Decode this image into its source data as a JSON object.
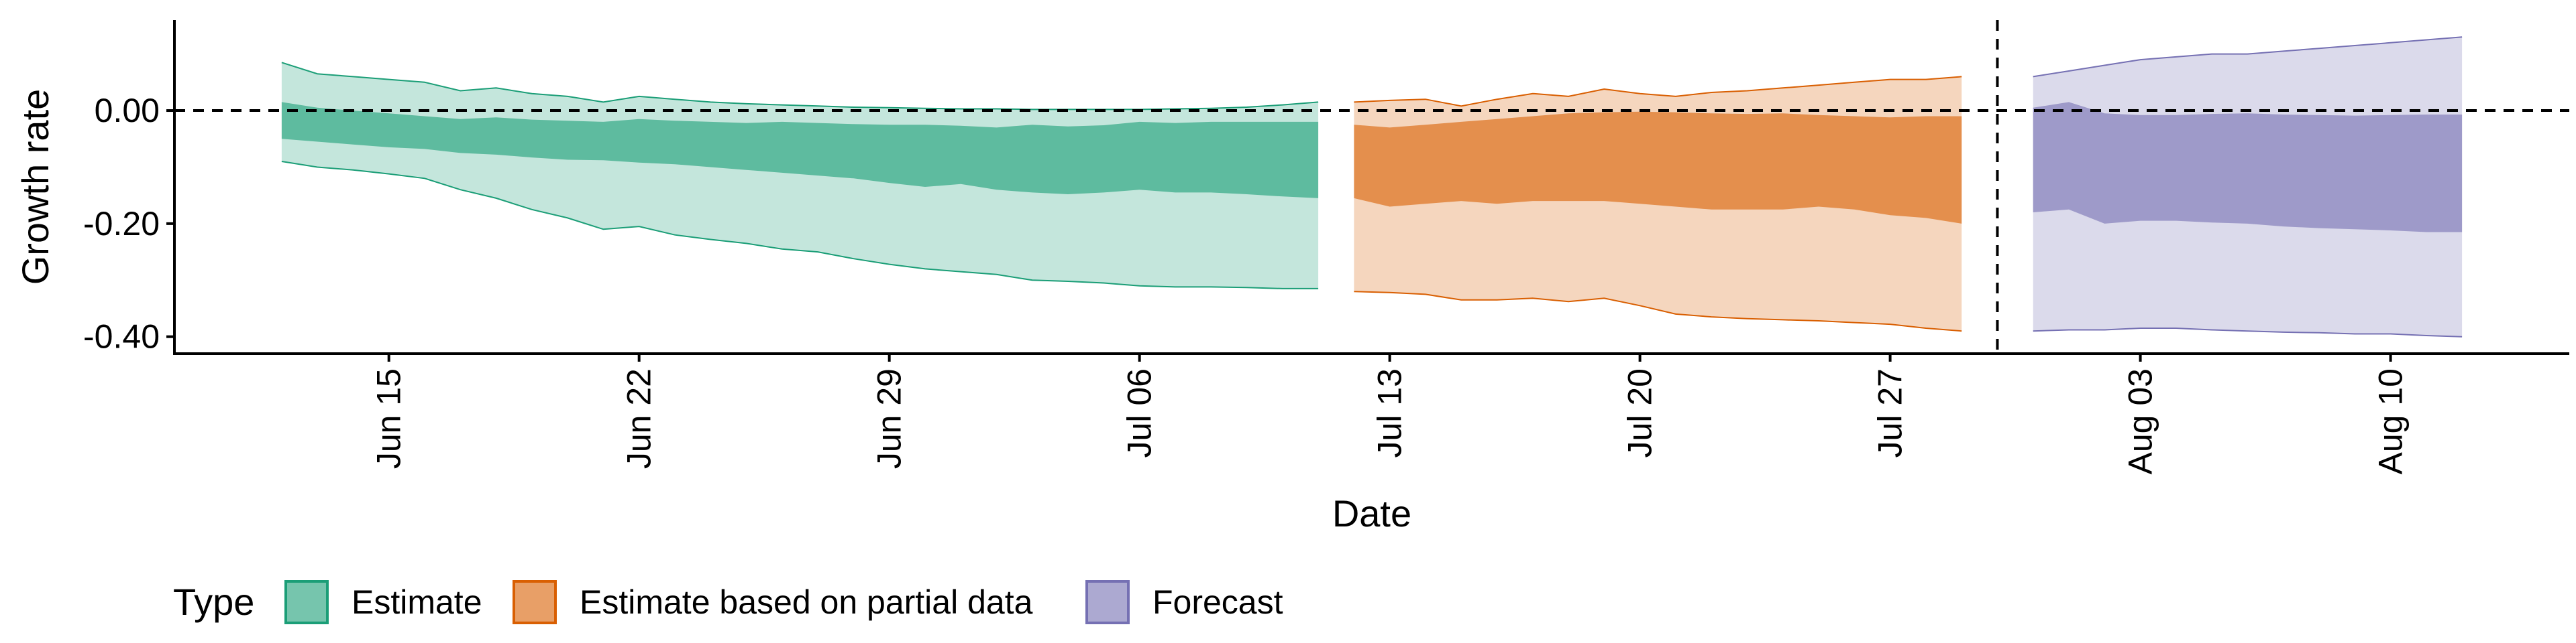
{
  "chart_data": {
    "type": "area",
    "title": "",
    "xlabel": "Date",
    "ylabel": "Growth rate",
    "x_type": "date",
    "xlim": [
      "2020-06-09",
      "2020-08-15"
    ],
    "ylim": [
      -0.43,
      0.16
    ],
    "y_ticks": [
      0.0,
      -0.2,
      -0.4
    ],
    "y_tick_labels": [
      "0.00",
      "-0.20",
      "-0.40"
    ],
    "x_ticks": [
      "2020-06-15",
      "2020-06-22",
      "2020-06-29",
      "2020-07-06",
      "2020-07-13",
      "2020-07-20",
      "2020-07-27",
      "2020-08-03",
      "2020-08-10"
    ],
    "x_tick_labels": [
      "Jun 15",
      "Jun 22",
      "Jun 29",
      "Jul 06",
      "Jul 13",
      "Jul 20",
      "Jul 27",
      "Aug 03",
      "Aug 10"
    ],
    "reference_lines": [
      {
        "orientation": "horizontal",
        "value": 0.0,
        "style": "dashed"
      },
      {
        "orientation": "vertical",
        "value": "2020-07-30",
        "style": "dashed"
      }
    ],
    "grid": false,
    "legend": {
      "title": "Type",
      "position": "bottom",
      "entries": [
        {
          "label": "Estimate",
          "color": "#1B9E77"
        },
        {
          "label": "Estimate based on partial data",
          "color": "#D95F02"
        },
        {
          "label": "Forecast",
          "color": "#7570B3"
        }
      ]
    },
    "series": [
      {
        "name": "Estimate",
        "color": "#1B9E77",
        "x": [
          "2020-06-12",
          "2020-06-13",
          "2020-06-14",
          "2020-06-15",
          "2020-06-16",
          "2020-06-17",
          "2020-06-18",
          "2020-06-19",
          "2020-06-20",
          "2020-06-21",
          "2020-06-22",
          "2020-06-23",
          "2020-06-24",
          "2020-06-25",
          "2020-06-26",
          "2020-06-27",
          "2020-06-28",
          "2020-06-29",
          "2020-06-30",
          "2020-07-01",
          "2020-07-02",
          "2020-07-03",
          "2020-07-04",
          "2020-07-05",
          "2020-07-06",
          "2020-07-07",
          "2020-07-08",
          "2020-07-09",
          "2020-07-10",
          "2020-07-11"
        ],
        "outer_upper": [
          0.085,
          0.065,
          0.06,
          0.055,
          0.05,
          0.035,
          0.04,
          0.03,
          0.025,
          0.015,
          0.025,
          0.02,
          0.015,
          0.012,
          0.01,
          0.008,
          0.006,
          0.005,
          0.004,
          0.003,
          0.003,
          0.002,
          0.002,
          0.002,
          0.002,
          0.003,
          0.004,
          0.006,
          0.01,
          0.015
        ],
        "inner_upper": [
          0.015,
          0.005,
          0.0,
          -0.005,
          -0.01,
          -0.015,
          -0.012,
          -0.016,
          -0.018,
          -0.02,
          -0.015,
          -0.018,
          -0.02,
          -0.022,
          -0.02,
          -0.022,
          -0.024,
          -0.025,
          -0.025,
          -0.027,
          -0.03,
          -0.025,
          -0.028,
          -0.026,
          -0.02,
          -0.022,
          -0.02,
          -0.02,
          -0.02,
          -0.02
        ],
        "inner_lower": [
          -0.05,
          -0.055,
          -0.06,
          -0.065,
          -0.068,
          -0.075,
          -0.078,
          -0.083,
          -0.087,
          -0.088,
          -0.092,
          -0.095,
          -0.1,
          -0.105,
          -0.11,
          -0.115,
          -0.12,
          -0.128,
          -0.135,
          -0.13,
          -0.14,
          -0.145,
          -0.148,
          -0.145,
          -0.14,
          -0.145,
          -0.145,
          -0.148,
          -0.152,
          -0.155
        ],
        "outer_lower": [
          -0.09,
          -0.1,
          -0.105,
          -0.112,
          -0.12,
          -0.14,
          -0.155,
          -0.175,
          -0.19,
          -0.21,
          -0.205,
          -0.22,
          -0.228,
          -0.235,
          -0.245,
          -0.25,
          -0.262,
          -0.272,
          -0.28,
          -0.285,
          -0.29,
          -0.3,
          -0.302,
          -0.305,
          -0.31,
          -0.312,
          -0.312,
          -0.313,
          -0.315,
          -0.315
        ]
      },
      {
        "name": "Estimate based on partial data",
        "color": "#D95F02",
        "x": [
          "2020-07-12",
          "2020-07-13",
          "2020-07-14",
          "2020-07-15",
          "2020-07-16",
          "2020-07-17",
          "2020-07-18",
          "2020-07-19",
          "2020-07-20",
          "2020-07-21",
          "2020-07-22",
          "2020-07-23",
          "2020-07-24",
          "2020-07-25",
          "2020-07-26",
          "2020-07-27",
          "2020-07-28",
          "2020-07-29"
        ],
        "outer_upper": [
          0.015,
          0.018,
          0.02,
          0.008,
          0.02,
          0.03,
          0.025,
          0.038,
          0.03,
          0.025,
          0.032,
          0.035,
          0.04,
          0.045,
          0.05,
          0.055,
          0.055,
          0.06
        ],
        "inner_upper": [
          -0.025,
          -0.03,
          -0.025,
          -0.02,
          -0.015,
          -0.01,
          -0.005,
          -0.003,
          -0.002,
          -0.003,
          -0.005,
          -0.006,
          -0.005,
          -0.008,
          -0.01,
          -0.012,
          -0.01,
          -0.01
        ],
        "inner_lower": [
          -0.155,
          -0.17,
          -0.165,
          -0.16,
          -0.165,
          -0.16,
          -0.16,
          -0.16,
          -0.165,
          -0.17,
          -0.175,
          -0.175,
          -0.175,
          -0.17,
          -0.175,
          -0.185,
          -0.19,
          -0.2
        ],
        "outer_lower": [
          -0.32,
          -0.322,
          -0.325,
          -0.335,
          -0.335,
          -0.332,
          -0.338,
          -0.332,
          -0.345,
          -0.36,
          -0.365,
          -0.368,
          -0.37,
          -0.372,
          -0.375,
          -0.378,
          -0.385,
          -0.39
        ]
      },
      {
        "name": "Forecast",
        "color": "#7570B3",
        "x": [
          "2020-07-31",
          "2020-08-01",
          "2020-08-02",
          "2020-08-03",
          "2020-08-04",
          "2020-08-05",
          "2020-08-06",
          "2020-08-07",
          "2020-08-08",
          "2020-08-09",
          "2020-08-10",
          "2020-08-11",
          "2020-08-12"
        ],
        "outer_upper": [
          0.06,
          0.07,
          0.08,
          0.09,
          0.095,
          0.1,
          0.1,
          0.105,
          0.11,
          0.115,
          0.12,
          0.125,
          0.13
        ],
        "inner_upper": [
          0.005,
          0.015,
          -0.005,
          -0.008,
          -0.008,
          -0.006,
          -0.005,
          -0.007,
          -0.008,
          -0.009,
          -0.008,
          -0.007,
          -0.007
        ],
        "inner_lower": [
          -0.18,
          -0.175,
          -0.2,
          -0.195,
          -0.195,
          -0.198,
          -0.2,
          -0.205,
          -0.208,
          -0.21,
          -0.212,
          -0.215,
          -0.215
        ],
        "outer_lower": [
          -0.39,
          -0.388,
          -0.388,
          -0.385,
          -0.385,
          -0.388,
          -0.39,
          -0.392,
          -0.393,
          -0.395,
          -0.395,
          -0.398,
          -0.4
        ]
      }
    ]
  }
}
